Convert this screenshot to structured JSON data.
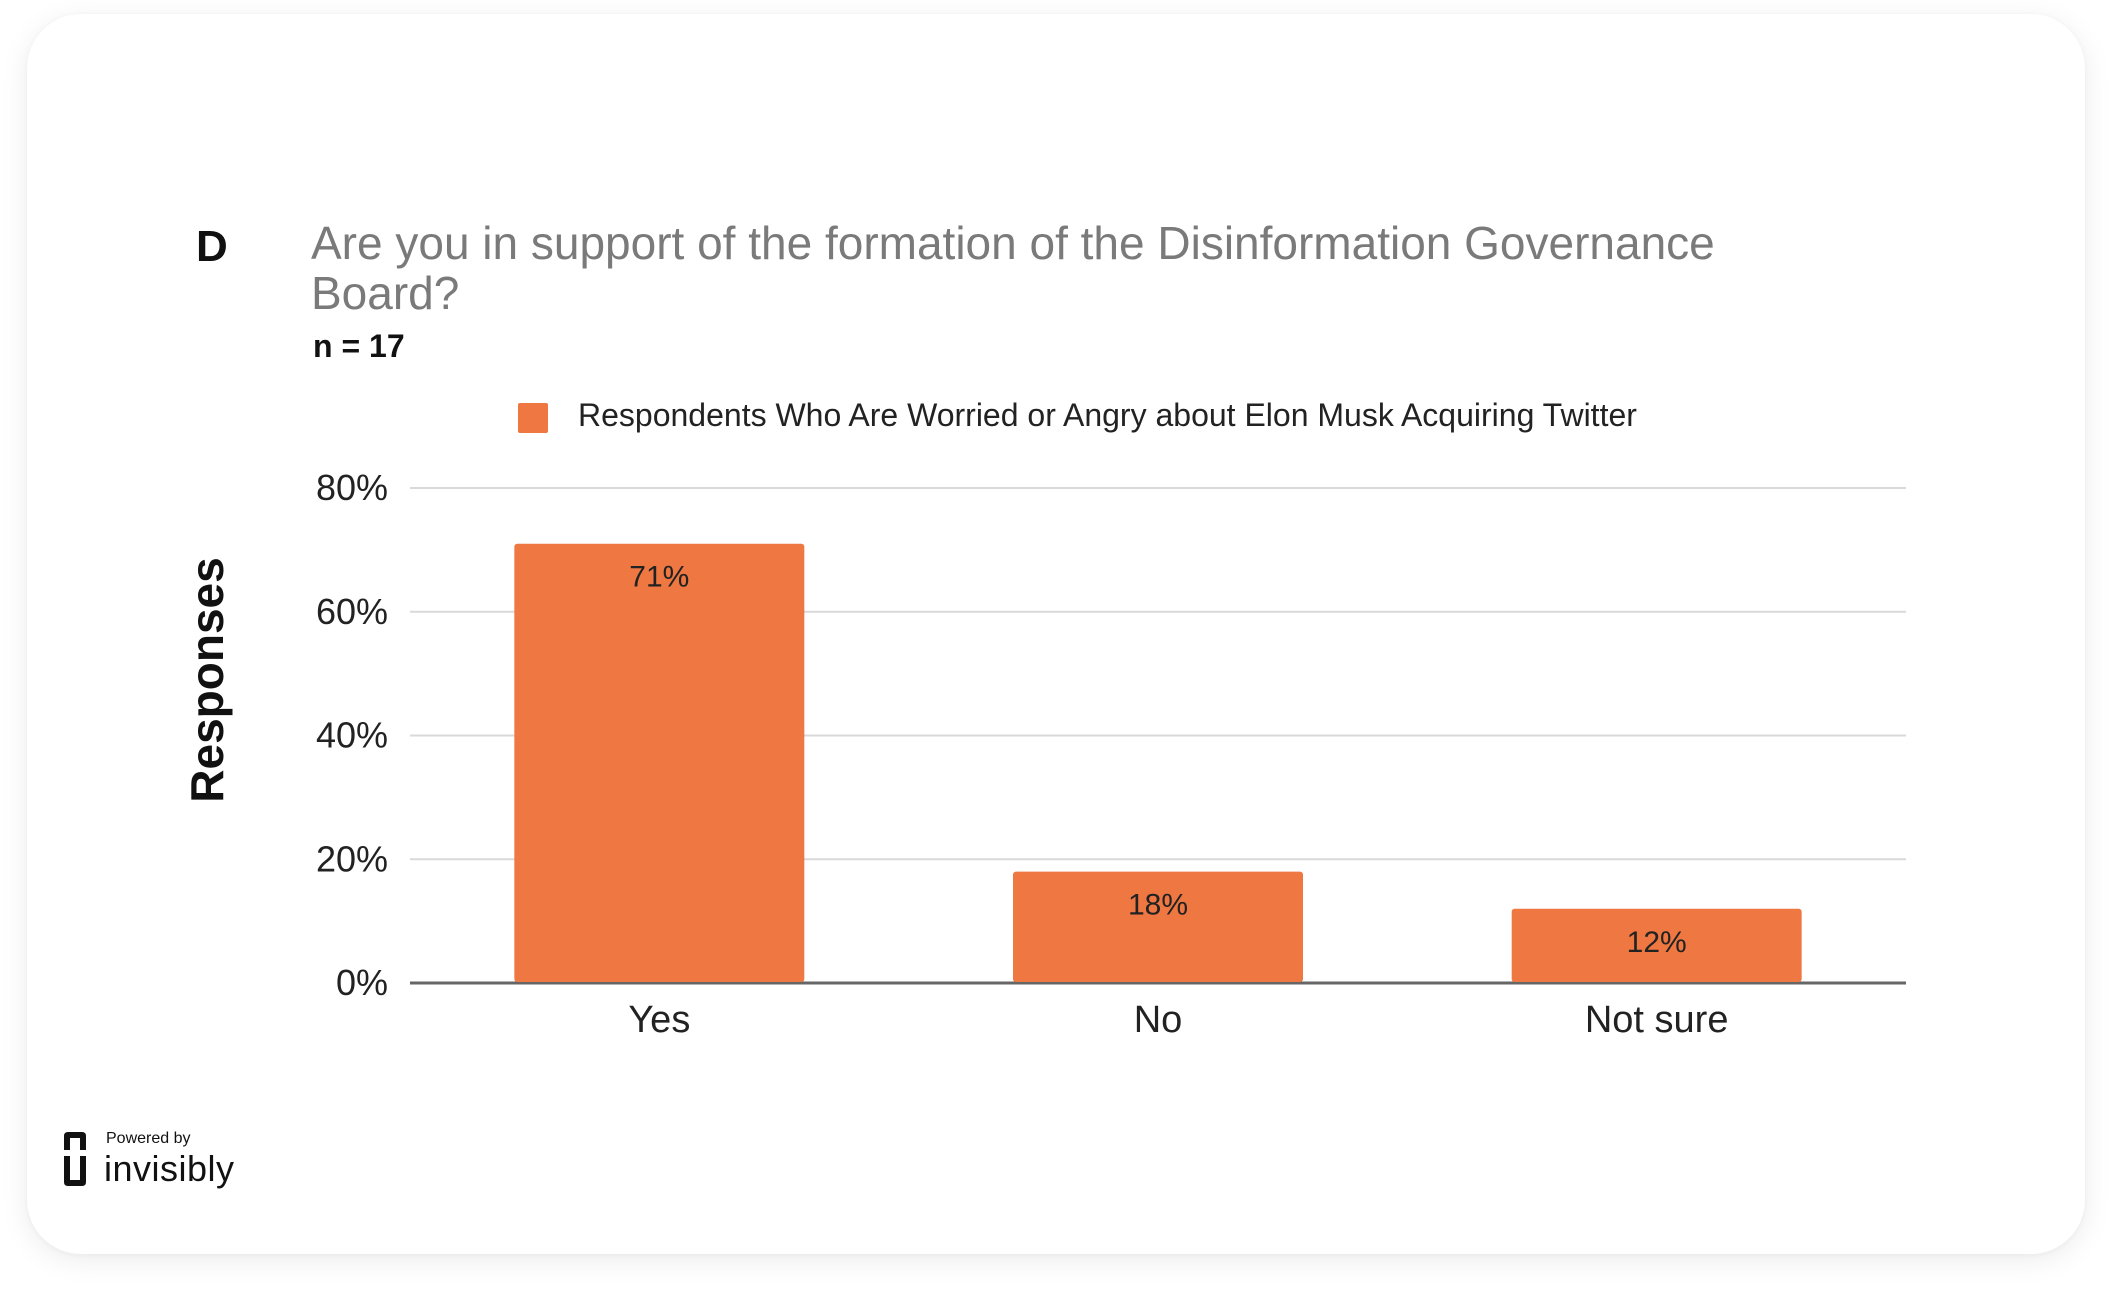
{
  "panel": {
    "letter": "D"
  },
  "chart_data": {
    "type": "bar",
    "title": "Are you in support of the formation of the Disinformation Governance Board?",
    "subtitle": "n = 17",
    "ylabel": "Responses",
    "xlabel": "",
    "categories": [
      "Yes",
      "No",
      "Not sure"
    ],
    "series": [
      {
        "name": "Respondents Who Are Worried or Angry about Elon Musk Acquiring Twitter",
        "values": [
          71,
          18,
          12
        ],
        "labels": [
          "71%",
          "18%",
          "12%"
        ],
        "color": "#ee7742"
      }
    ],
    "ylim": [
      0,
      80
    ],
    "yticks": [
      0,
      20,
      40,
      60,
      80
    ],
    "ytick_labels": [
      "0%",
      "20%",
      "40%",
      "60%",
      "80%"
    ],
    "grid": true,
    "legend": "top-center"
  },
  "brand": {
    "powered_by": "Powered by",
    "name": "invisibly",
    "icon": "invisibly-logo-icon"
  },
  "colors": {
    "bar": "#ee7742",
    "grid": "#d9d9d9",
    "axis": "#666666",
    "title": "#7a7a7a"
  }
}
